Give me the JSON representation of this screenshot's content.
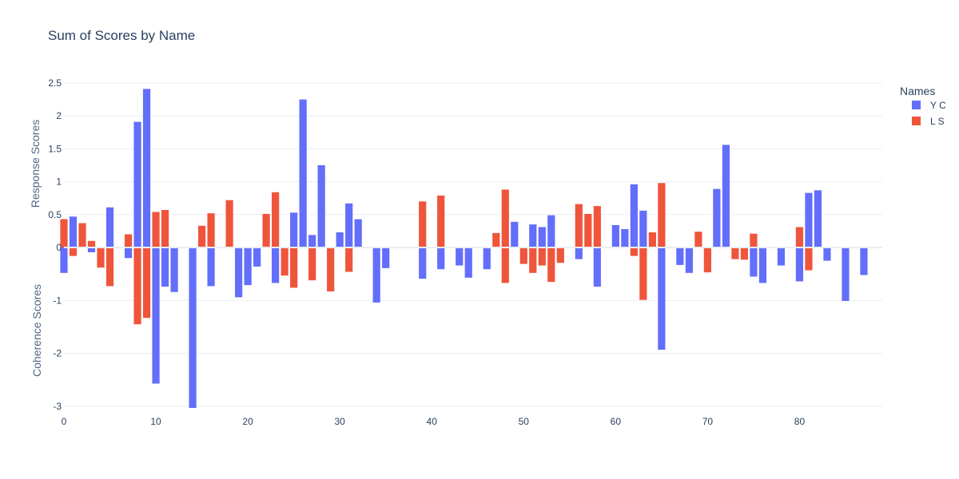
{
  "chart_data": {
    "type": "bar",
    "title": "Sum of Scores by Name",
    "ylabel_top": "Response Scores",
    "ylabel_bottom": "Coherence Scores",
    "xlim": [
      0,
      89
    ],
    "x_ticks": [
      0,
      10,
      20,
      30,
      40,
      50,
      60,
      70,
      80
    ],
    "top_panel": {
      "ylim": [
        0,
        2.5
      ],
      "ticks": [
        0,
        0.5,
        1,
        1.5,
        2,
        2.5
      ]
    },
    "bottom_panel": {
      "ylim": [
        -3,
        0
      ],
      "ticks": [
        -1,
        -2,
        -3
      ]
    },
    "legend": {
      "title": "Names",
      "placement": "top-right"
    },
    "series": [
      {
        "name": "Y C",
        "color": "#636efa",
        "response": [
          [
            1,
            0.47
          ],
          [
            5,
            0.61
          ],
          [
            8,
            1.91
          ],
          [
            9,
            2.41
          ],
          [
            25,
            0.53
          ],
          [
            26,
            2.25
          ],
          [
            27,
            0.19
          ],
          [
            28,
            1.25
          ],
          [
            30,
            0.23
          ],
          [
            31,
            0.67
          ],
          [
            32,
            0.43
          ],
          [
            49,
            0.39
          ],
          [
            51,
            0.35
          ],
          [
            52,
            0.31
          ],
          [
            53,
            0.49
          ],
          [
            60,
            0.34
          ],
          [
            61,
            0.28
          ],
          [
            62,
            0.96
          ],
          [
            63,
            0.56
          ],
          [
            71,
            0.89
          ],
          [
            72,
            1.56
          ],
          [
            81,
            0.83
          ],
          [
            82,
            0.87
          ]
        ],
        "coherence": [
          [
            0,
            -0.48
          ],
          [
            3,
            -0.09
          ],
          [
            7,
            -0.2
          ],
          [
            10,
            -2.57
          ],
          [
            11,
            -0.74
          ],
          [
            12,
            -0.84
          ],
          [
            14,
            -3.03
          ],
          [
            16,
            -0.73
          ],
          [
            19,
            -0.94
          ],
          [
            20,
            -0.71
          ],
          [
            21,
            -0.36
          ],
          [
            23,
            -0.67
          ],
          [
            34,
            -1.04
          ],
          [
            35,
            -0.39
          ],
          [
            39,
            -0.59
          ],
          [
            41,
            -0.41
          ],
          [
            43,
            -0.34
          ],
          [
            44,
            -0.57
          ],
          [
            46,
            -0.41
          ],
          [
            56,
            -0.22
          ],
          [
            58,
            -0.74
          ],
          [
            65,
            -1.93
          ],
          [
            67,
            -0.33
          ],
          [
            68,
            -0.48
          ],
          [
            75,
            -0.55
          ],
          [
            76,
            -0.67
          ],
          [
            78,
            -0.34
          ],
          [
            80,
            -0.64
          ],
          [
            83,
            -0.25
          ],
          [
            85,
            -1.01
          ],
          [
            87,
            -0.52
          ]
        ]
      },
      {
        "name": "L S",
        "color": "#ef553b",
        "response": [
          [
            0,
            0.43
          ],
          [
            2,
            0.37
          ],
          [
            3,
            0.1
          ],
          [
            7,
            0.2
          ],
          [
            10,
            0.54
          ],
          [
            11,
            0.57
          ],
          [
            15,
            0.33
          ],
          [
            16,
            0.52
          ],
          [
            18,
            0.72
          ],
          [
            22,
            0.51
          ],
          [
            23,
            0.84
          ],
          [
            39,
            0.7
          ],
          [
            41,
            0.79
          ],
          [
            47,
            0.22
          ],
          [
            48,
            0.88
          ],
          [
            56,
            0.66
          ],
          [
            57,
            0.51
          ],
          [
            58,
            0.63
          ],
          [
            64,
            0.23
          ],
          [
            65,
            0.98
          ],
          [
            69,
            0.24
          ],
          [
            75,
            0.21
          ],
          [
            80,
            0.31
          ]
        ],
        "coherence": [
          [
            1,
            -0.16
          ],
          [
            4,
            -0.38
          ],
          [
            5,
            -0.73
          ],
          [
            8,
            -1.45
          ],
          [
            9,
            -1.33
          ],
          [
            24,
            -0.53
          ],
          [
            25,
            -0.76
          ],
          [
            27,
            -0.62
          ],
          [
            29,
            -0.83
          ],
          [
            31,
            -0.46
          ],
          [
            48,
            -0.67
          ],
          [
            50,
            -0.31
          ],
          [
            51,
            -0.48
          ],
          [
            52,
            -0.34
          ],
          [
            53,
            -0.65
          ],
          [
            54,
            -0.29
          ],
          [
            62,
            -0.16
          ],
          [
            63,
            -0.99
          ],
          [
            70,
            -0.47
          ],
          [
            73,
            -0.22
          ],
          [
            74,
            -0.23
          ],
          [
            81,
            -0.43
          ]
        ]
      }
    ]
  }
}
